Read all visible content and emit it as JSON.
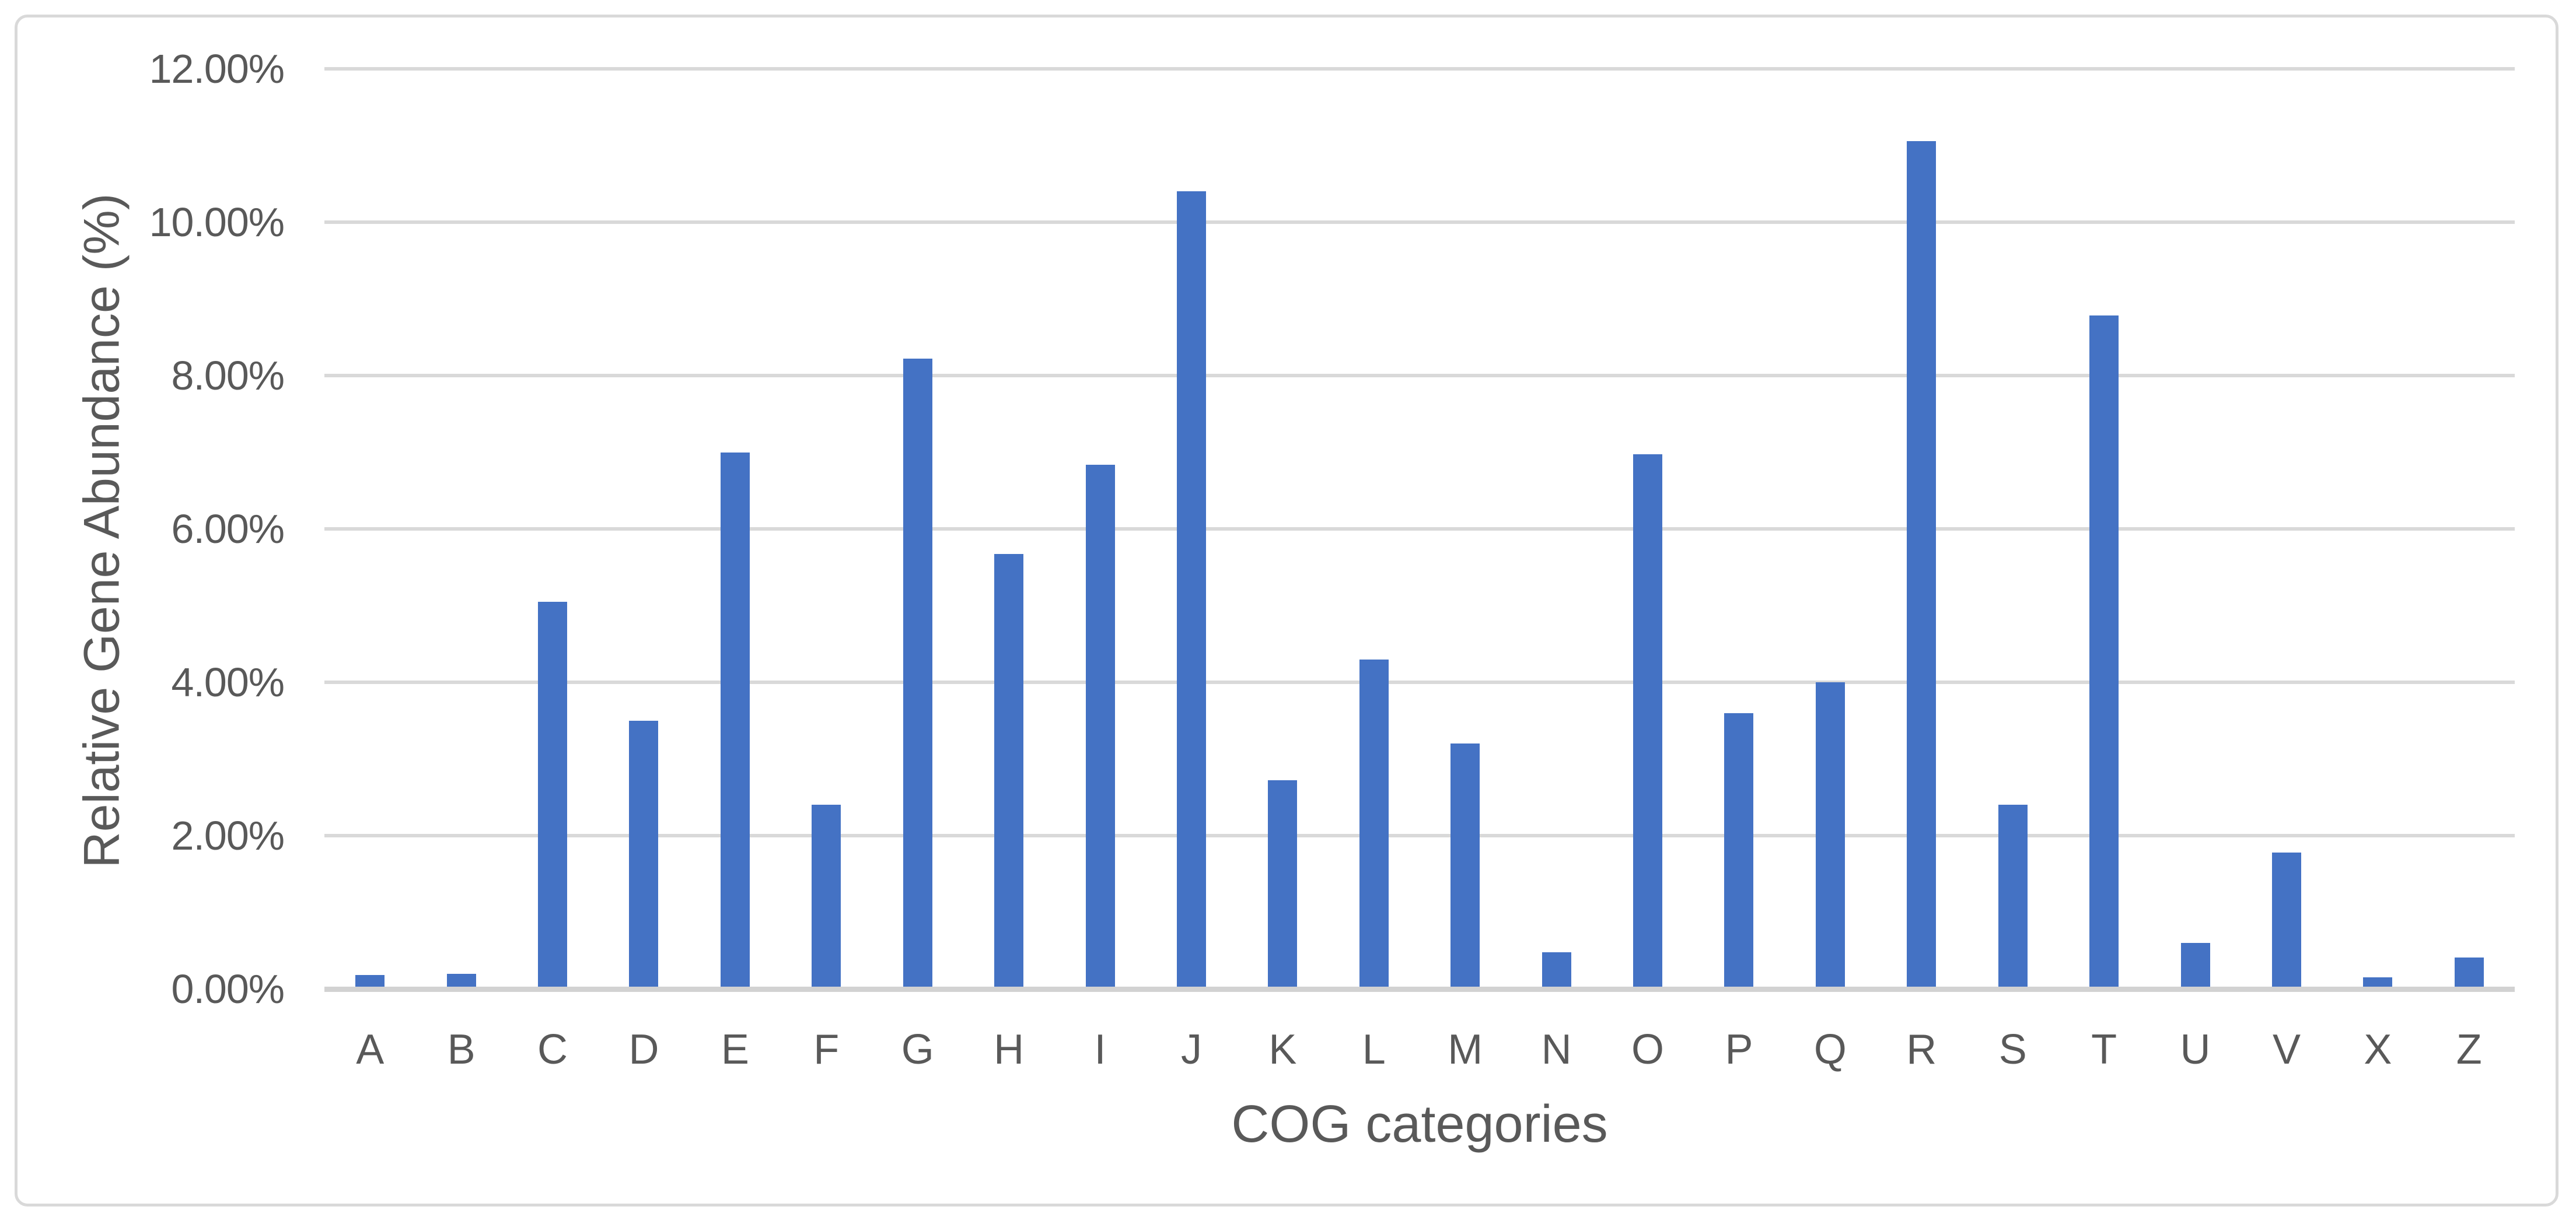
{
  "colors": {
    "bar": "#4472C4",
    "gridline": "#D9D9D9",
    "axis_line": "#D2D2D2",
    "text": "#595959",
    "chart_border": "#D9D9D9",
    "background": "#FFFFFF"
  },
  "chart_data": {
    "type": "bar",
    "title": "",
    "xlabel": "COG categories",
    "ylabel": "Relative Gene Abundance (%)",
    "categories": [
      "A",
      "B",
      "C",
      "D",
      "E",
      "F",
      "G",
      "H",
      "I",
      "J",
      "K",
      "L",
      "M",
      "N",
      "O",
      "P",
      "Q",
      "R",
      "S",
      "T",
      "U",
      "V",
      "X",
      "Z"
    ],
    "values": [
      0.18,
      0.2,
      5.05,
      3.5,
      7.0,
      2.4,
      8.22,
      5.67,
      6.84,
      10.4,
      2.72,
      4.3,
      3.2,
      0.48,
      6.97,
      3.6,
      4.0,
      11.06,
      2.4,
      8.78,
      0.6,
      1.78,
      0.15,
      0.41
    ],
    "ylim": [
      0,
      12
    ],
    "y_tick_step": 2,
    "y_ticks": [
      {
        "value": 12,
        "label": "12.00%"
      },
      {
        "value": 10,
        "label": "10.00%"
      },
      {
        "value": 8,
        "label": "8.00%"
      },
      {
        "value": 6,
        "label": "6.00%"
      },
      {
        "value": 4,
        "label": "4.00%"
      },
      {
        "value": 2,
        "label": "2.00%"
      },
      {
        "value": 0,
        "label": "0.00%"
      }
    ],
    "grid": true,
    "legend": "none",
    "bar_color": "#4472C4"
  }
}
